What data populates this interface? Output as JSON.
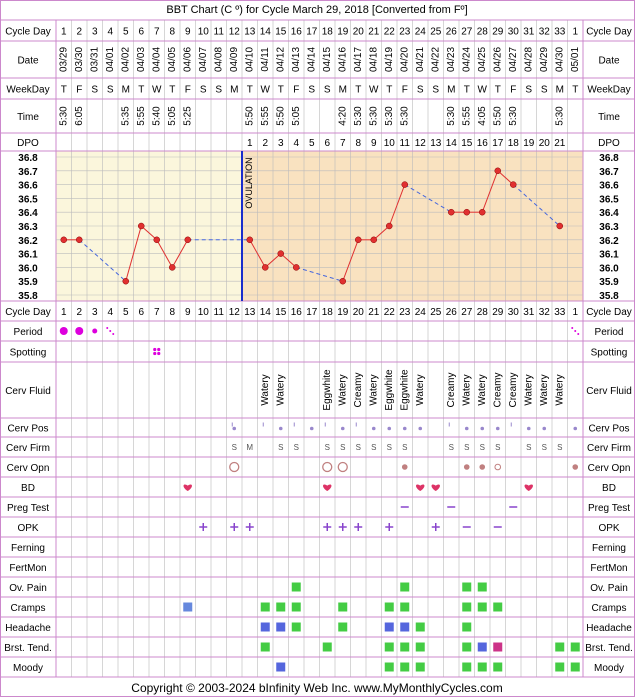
{
  "title": "BBT Chart (C º) for Cycle March 29, 2018  [Converted from Fº]",
  "footer": "Copyright © 2003-2024 bInfinity Web Inc.    www.MyMonthlyCycles.com",
  "row_labels": {
    "cycle_day": "Cycle Day",
    "date": "Date",
    "weekday": "WeekDay",
    "time": "Time",
    "dpo": "DPO",
    "period": "Period",
    "spotting": "Spotting",
    "cerv_fluid": "Cerv Fluid",
    "cerv_pos": "Cerv Pos",
    "cerv_firm": "Cerv Firm",
    "cerv_opn": "Cerv Opn",
    "bd": "BD",
    "preg_test": "Preg Test",
    "opk": "OPK",
    "ferning": "Ferning",
    "fertmon": "FertMon",
    "ov_pain": "Ov. Pain",
    "cramps": "Cramps",
    "headache": "Headache",
    "brst_tend": "Brst. Tend.",
    "moody": "Moody"
  },
  "ovulation_label": "OVULATION",
  "colors": {
    "border": "#cc88cc",
    "grid": "#bbbbbb",
    "pre_bg": "#fbf6dc",
    "post_bg": "#f9e2c0",
    "line": "#e03030",
    "dashed": "#4466dd",
    "ovulation": "#1a2dcc",
    "period": "#dd00dd",
    "bd": "#dd3366",
    "cramps": "#6688dd",
    "green": "#44cc44",
    "blue_sq": "#5566dd",
    "pink_sq": "#cc3388"
  },
  "chart_data": {
    "type": "line",
    "cycle_days": [
      "1",
      "2",
      "3",
      "4",
      "5",
      "6",
      "7",
      "8",
      "9",
      "10",
      "11",
      "12",
      "13",
      "14",
      "15",
      "16",
      "17",
      "18",
      "19",
      "20",
      "21",
      "22",
      "23",
      "24",
      "25",
      "26",
      "27",
      "28",
      "29",
      "30",
      "31",
      "32",
      "33",
      "1"
    ],
    "dates": [
      "03/29",
      "03/30",
      "03/31",
      "04/01",
      "04/02",
      "04/03",
      "04/04",
      "04/05",
      "04/06",
      "04/07",
      "04/08",
      "04/09",
      "04/10",
      "04/11",
      "04/12",
      "04/13",
      "04/14",
      "04/15",
      "04/16",
      "04/17",
      "04/18",
      "04/19",
      "04/20",
      "04/21",
      "04/22",
      "04/23",
      "04/24",
      "04/25",
      "04/26",
      "04/27",
      "04/28",
      "04/29",
      "04/30",
      "05/01"
    ],
    "weekdays": [
      "T",
      "F",
      "S",
      "S",
      "M",
      "T",
      "W",
      "T",
      "F",
      "S",
      "S",
      "M",
      "T",
      "W",
      "T",
      "F",
      "S",
      "S",
      "M",
      "T",
      "W",
      "T",
      "F",
      "S",
      "S",
      "M",
      "T",
      "W",
      "T",
      "F",
      "S",
      "S",
      "M",
      "T"
    ],
    "times": [
      "5:30",
      "6:05",
      "",
      "",
      "5:35",
      "5:55",
      "5:40",
      "5:05",
      "5:25",
      "",
      "",
      "",
      "5:50",
      "5:55",
      "5:50",
      "5:05",
      "",
      "",
      "4:20",
      "5:30",
      "5:30",
      "5:30",
      "5:30",
      "",
      "",
      "5:30",
      "5:55",
      "4:05",
      "5:50",
      "5:30",
      "",
      "",
      "5:30",
      ""
    ],
    "dpo": [
      "",
      "",
      "",
      "",
      "",
      "",
      "",
      "",
      "",
      "",
      "",
      "",
      "1",
      "2",
      "3",
      "4",
      "5",
      "6",
      "7",
      "8",
      "9",
      "10",
      "11",
      "12",
      "13",
      "14",
      "15",
      "16",
      "17",
      "18",
      "19",
      "20",
      "21",
      ""
    ],
    "temperatures": [
      36.2,
      36.2,
      null,
      null,
      35.9,
      36.3,
      36.2,
      36.0,
      36.2,
      null,
      null,
      null,
      36.2,
      36.0,
      36.1,
      36.0,
      null,
      null,
      35.9,
      36.2,
      36.2,
      36.3,
      36.6,
      null,
      null,
      36.4,
      36.4,
      36.4,
      36.7,
      36.6,
      null,
      null,
      36.3,
      null
    ],
    "y_ticks": [
      "36.8",
      "36.7",
      "36.6",
      "36.5",
      "36.4",
      "36.3",
      "36.2",
      "36.1",
      "36.0",
      "35.9",
      "35.8"
    ],
    "ylim": [
      35.8,
      36.8
    ],
    "ovulation_day_index": 11,
    "cerv_fluid": [
      "",
      "",
      "",
      "",
      "",
      "",
      "",
      "",
      "",
      "",
      "",
      "",
      "",
      "Watery",
      "Watery",
      "",
      "",
      "Eggwhite",
      "Watery",
      "Creamy",
      "Watery",
      "Eggwhite",
      "Eggwhite",
      "Watery",
      "",
      "Creamy",
      "Watery",
      "Watery",
      "Creamy",
      "Creamy",
      "Watery",
      "Watery",
      "Watery",
      ""
    ],
    "cerv_firm": [
      "",
      "",
      "",
      "",
      "",
      "",
      "",
      "",
      "",
      "",
      "",
      "S",
      "M",
      "",
      "S",
      "S",
      "",
      "S",
      "S",
      "S",
      "S",
      "S",
      "S",
      "",
      "",
      "S",
      "S",
      "S",
      "S",
      "",
      "S",
      "S",
      "S",
      ""
    ]
  }
}
